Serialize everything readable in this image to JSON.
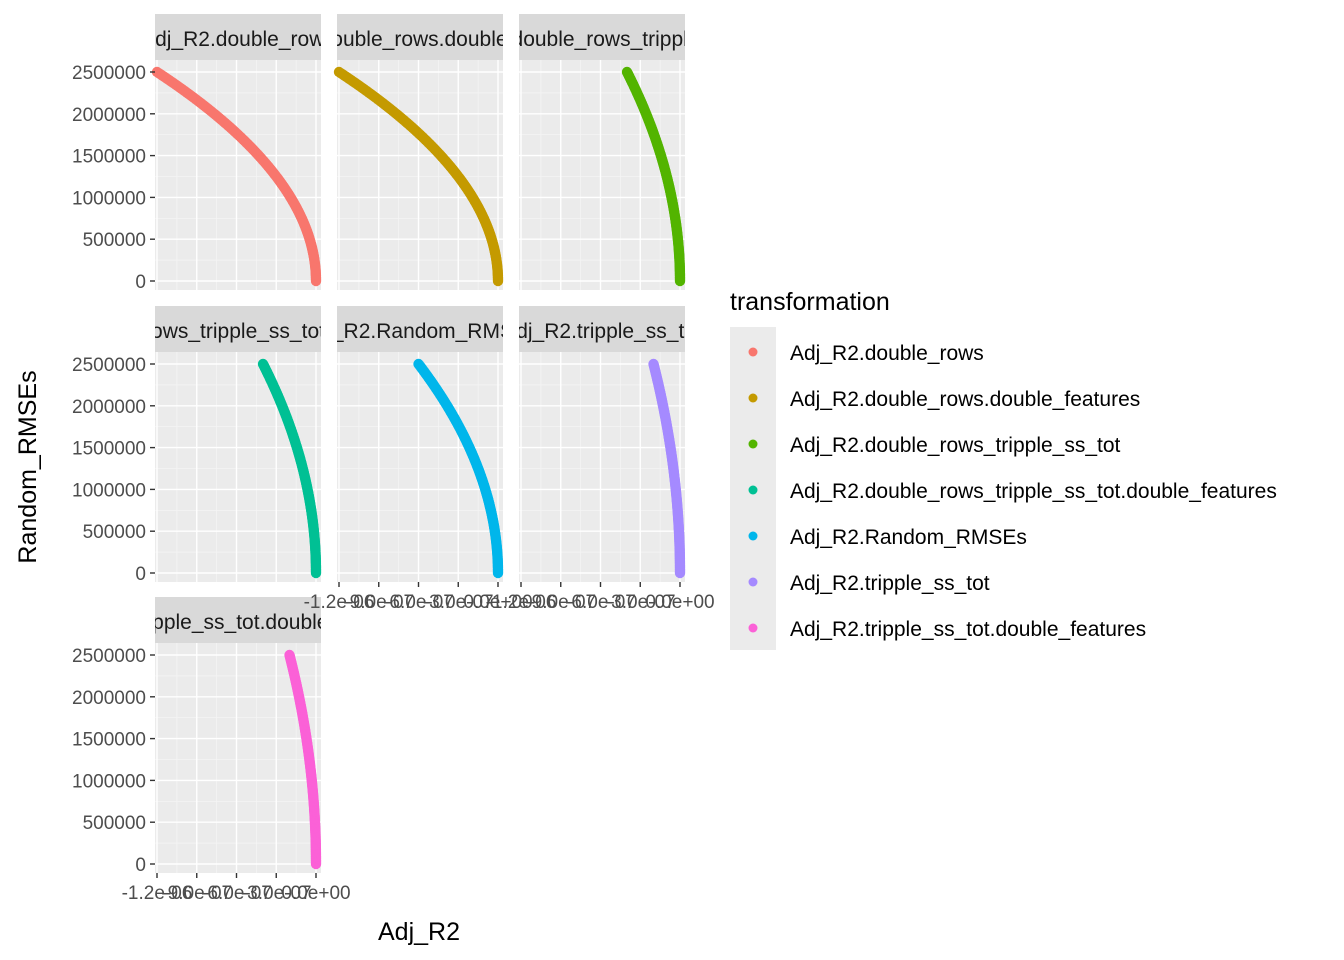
{
  "chart_data": {
    "type": "scatter",
    "xlabel": "Adj_R2",
    "ylabel": "Random_RMSEs",
    "xlim": [
      -1.2e-06,
      0
    ],
    "ylim": [
      0,
      2500000
    ],
    "yticks": [
      0,
      500000,
      1000000,
      1500000,
      2000000,
      2500000
    ],
    "ytick_labels": [
      "0",
      "500000",
      "1000000",
      "1500000",
      "2000000",
      "2500000"
    ],
    "xticks": [
      -1.2e-06,
      -9e-07,
      -6e-07,
      -3e-07,
      0
    ],
    "xtick_labels": [
      "-1.2e-06",
      "-9.0e-07",
      "-6.0e-07",
      "-3.0e-07",
      "0.0e+00"
    ],
    "grid": true,
    "legend_position": "right",
    "legend": {
      "title": "transformation",
      "entries": [
        "Adj_R2.double_rows",
        "Adj_R2.double_rows.double_features",
        "Adj_R2.double_rows_tripple_ss_tot",
        "Adj_R2.double_rows_tripple_ss_tot.double_features",
        "Adj_R2.Random_RMSEs",
        "Adj_R2.tripple_ss_tot",
        "Adj_R2.tripple_ss_tot.double_features"
      ]
    },
    "series": [
      {
        "name": "Adj_R2.double_rows",
        "color": "#F8766D",
        "x_at_ymax": -1.2e-06,
        "x": [
          -1.2e-06,
          -8.1e-07,
          -4.8e-07,
          -2e-07,
          -5e-08,
          0
        ],
        "y": [
          2500000,
          2000000,
          1500000,
          1000000,
          500000,
          0
        ]
      },
      {
        "name": "Adj_R2.double_rows.double_features",
        "color": "#C49A00",
        "x_at_ymax": -1.2e-06,
        "x": [
          -1.2e-06,
          -8.1e-07,
          -4.8e-07,
          -2e-07,
          -5e-08,
          0
        ],
        "y": [
          2500000,
          2000000,
          1500000,
          1000000,
          500000,
          0
        ]
      },
      {
        "name": "Adj_R2.double_rows_tripple_ss_tot",
        "color": "#53B400",
        "x_at_ymax": -4e-07,
        "x": [
          -4e-07,
          -2.7e-07,
          -1.6e-07,
          -6.7e-08,
          -1.7e-08,
          0
        ],
        "y": [
          2500000,
          2000000,
          1500000,
          1000000,
          500000,
          0
        ]
      },
      {
        "name": "Adj_R2.double_rows_tripple_ss_tot.double_features",
        "color": "#00C094",
        "x_at_ymax": -4e-07,
        "x": [
          -4e-07,
          -2.7e-07,
          -1.6e-07,
          -6.7e-08,
          -1.7e-08,
          0
        ],
        "y": [
          2500000,
          2000000,
          1500000,
          1000000,
          500000,
          0
        ]
      },
      {
        "name": "Adj_R2.Random_RMSEs",
        "color": "#00B6EB",
        "x_at_ymax": -6e-07,
        "x": [
          -6e-07,
          -4.05e-07,
          -2.4e-07,
          -1e-07,
          -2.5e-08,
          0
        ],
        "y": [
          2500000,
          2000000,
          1500000,
          1000000,
          500000,
          0
        ]
      },
      {
        "name": "Adj_R2.tripple_ss_tot",
        "color": "#A58AFF",
        "x_at_ymax": -2e-07,
        "x": [
          -2e-07,
          -1.35e-07,
          -8e-08,
          -3.3e-08,
          -8e-09,
          0
        ],
        "y": [
          2500000,
          2000000,
          1500000,
          1000000,
          500000,
          0
        ]
      },
      {
        "name": "Adj_R2.tripple_ss_tot.double_features",
        "color": "#FB61D7",
        "x_at_ymax": -2e-07,
        "x": [
          -2e-07,
          -1.35e-07,
          -8e-08,
          -3.3e-08,
          -8e-09,
          0
        ],
        "y": [
          2500000,
          2000000,
          1500000,
          1000000,
          500000,
          0
        ]
      }
    ]
  }
}
